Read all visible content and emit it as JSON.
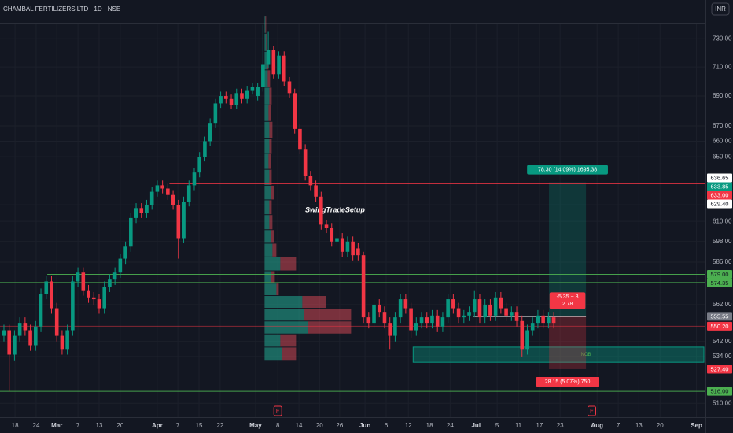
{
  "chart_data": {
    "type": "candlestick",
    "title": "CHAMBAL FERTILIZERS LTD · 1D · NSE",
    "currency": "INR",
    "log_scale": true,
    "grid": true,
    "up_color": "#089981",
    "down_color": "#f23645",
    "xlim": [
      -0.74,
      132.4
    ],
    "ylim": [
      505,
      741
    ],
    "xticks": [
      {
        "value": 2.1,
        "label": "18"
      },
      {
        "value": 6.1,
        "label": "24"
      },
      {
        "value": 10,
        "label": "Mar"
      },
      {
        "value": 14,
        "label": "7"
      },
      {
        "value": 18,
        "label": "13"
      },
      {
        "value": 22,
        "label": "20"
      },
      {
        "value": 29,
        "label": "Apr"
      },
      {
        "value": 32.9,
        "label": "7"
      },
      {
        "value": 36.9,
        "label": "15"
      },
      {
        "value": 40.9,
        "label": "22"
      },
      {
        "value": 47.6,
        "label": "May"
      },
      {
        "value": 51.8,
        "label": "8"
      },
      {
        "value": 55.8,
        "label": "14"
      },
      {
        "value": 59.7,
        "label": "20"
      },
      {
        "value": 63.5,
        "label": "26"
      },
      {
        "value": 68.3,
        "label": "Jun"
      },
      {
        "value": 72.3,
        "label": "6"
      },
      {
        "value": 76.5,
        "label": "12"
      },
      {
        "value": 80.5,
        "label": "18"
      },
      {
        "value": 84.4,
        "label": "24"
      },
      {
        "value": 89.3,
        "label": "Jul"
      },
      {
        "value": 93.3,
        "label": "5"
      },
      {
        "value": 97.3,
        "label": "11"
      },
      {
        "value": 101.3,
        "label": "17"
      },
      {
        "value": 105.2,
        "label": "23"
      },
      {
        "value": 112.2,
        "label": "Aug"
      },
      {
        "value": 116.2,
        "label": "7"
      },
      {
        "value": 120.1,
        "label": "13"
      },
      {
        "value": 124.1,
        "label": "20"
      },
      {
        "value": 131,
        "label": "Sep"
      }
    ],
    "yticks": [
      {
        "value": 510,
        "label": "510.00"
      },
      {
        "value": 534,
        "label": "534.00"
      },
      {
        "value": 542,
        "label": "542.00"
      },
      {
        "value": 562,
        "label": "562.00"
      },
      {
        "value": 586,
        "label": "586.00"
      },
      {
        "value": 598,
        "label": "598.00"
      },
      {
        "value": 610,
        "label": "610.00"
      },
      {
        "value": 620,
        "label": "620.00"
      },
      {
        "value": 650,
        "label": "650.00"
      },
      {
        "value": 660,
        "label": "660.00"
      },
      {
        "value": 670,
        "label": "670.00"
      },
      {
        "value": 690,
        "label": "690.00"
      },
      {
        "value": 710,
        "label": "710.00"
      },
      {
        "value": 730,
        "label": "730.00"
      }
    ],
    "open": [
      545,
      548,
      535,
      545,
      552,
      548,
      540,
      550,
      568,
      575,
      560,
      545,
      538,
      548,
      575,
      580,
      570,
      566,
      565,
      560,
      572,
      576,
      580,
      588,
      595,
      612,
      618,
      615,
      620,
      628,
      632,
      630,
      626,
      620,
      600,
      622,
      632,
      640,
      650,
      660,
      672,
      685,
      690,
      688,
      684,
      692,
      688,
      694,
      690,
      696,
      712,
      722,
      705,
      718,
      700,
      692,
      668,
      655,
      638,
      632,
      625,
      608,
      606,
      598,
      600,
      592,
      598,
      594,
      590,
      555,
      552,
      562,
      558,
      552,
      545,
      555,
      565,
      560,
      548,
      552,
      555,
      552,
      556,
      550,
      555,
      565,
      560,
      555,
      556,
      558,
      565,
      555,
      562,
      556,
      566,
      560,
      556,
      558,
      553,
      538,
      548,
      552,
      556,
      552,
      555
    ],
    "high": [
      551,
      551,
      548,
      555,
      555,
      551,
      553,
      571,
      578,
      578,
      563,
      548,
      551,
      578,
      583,
      583,
      573,
      569,
      568,
      575,
      579,
      583,
      591,
      598,
      615,
      621,
      621,
      623,
      631,
      635,
      635,
      633,
      629,
      623,
      625,
      635,
      643,
      653,
      663,
      675,
      688,
      693,
      693,
      691,
      695,
      695,
      697,
      699,
      699,
      740,
      735,
      725,
      721,
      721,
      703,
      695,
      671,
      658,
      641,
      635,
      628,
      611,
      609,
      603,
      603,
      601,
      601,
      597,
      592,
      558,
      565,
      565,
      561,
      555,
      558,
      568,
      568,
      563,
      555,
      558,
      558,
      559,
      559,
      558,
      568,
      568,
      563,
      559,
      561,
      570,
      568,
      565,
      565,
      569,
      569,
      563,
      561,
      561,
      556,
      551,
      555,
      559,
      559,
      558,
      558
    ],
    "low": [
      542,
      516,
      532,
      542,
      545,
      537,
      537,
      547,
      565,
      557,
      542,
      535,
      535,
      545,
      572,
      567,
      563,
      562,
      557,
      557,
      569,
      573,
      577,
      585,
      592,
      609,
      612,
      612,
      617,
      625,
      627,
      623,
      617,
      588,
      597,
      619,
      629,
      637,
      647,
      657,
      669,
      682,
      685,
      681,
      681,
      685,
      685,
      691,
      687,
      693,
      709,
      702,
      702,
      697,
      689,
      665,
      652,
      635,
      629,
      622,
      605,
      603,
      595,
      595,
      589,
      589,
      587,
      587,
      552,
      549,
      549,
      555,
      549,
      538,
      542,
      552,
      557,
      544,
      545,
      549,
      549,
      549,
      547,
      547,
      552,
      557,
      552,
      552,
      553,
      555,
      552,
      552,
      553,
      553,
      557,
      553,
      553,
      550,
      534,
      535,
      545,
      549,
      549,
      549,
      549
    ],
    "close": [
      548,
      535,
      545,
      552,
      548,
      540,
      550,
      568,
      575,
      560,
      545,
      538,
      548,
      575,
      580,
      570,
      566,
      565,
      560,
      572,
      576,
      580,
      588,
      595,
      612,
      618,
      615,
      620,
      628,
      632,
      630,
      626,
      620,
      600,
      622,
      632,
      640,
      650,
      660,
      672,
      685,
      690,
      688,
      684,
      692,
      688,
      694,
      696,
      696,
      712,
      722,
      705,
      718,
      700,
      692,
      668,
      655,
      638,
      632,
      625,
      608,
      606,
      598,
      600,
      592,
      598,
      590,
      590,
      555,
      552,
      562,
      558,
      552,
      545,
      555,
      565,
      560,
      548,
      552,
      555,
      552,
      556,
      550,
      555,
      565,
      560,
      555,
      556,
      558,
      565,
      555,
      562,
      556,
      566,
      560,
      556,
      558,
      553,
      538,
      548,
      552,
      556,
      552,
      555,
      552
    ],
    "volume_profile": {
      "start": 49.3,
      "up_color": "#22ab94",
      "down_color": "#f7525f",
      "bins": [
        532,
        539,
        546,
        553,
        560,
        567,
        574,
        581,
        589,
        597,
        605,
        614,
        623,
        632,
        642,
        652,
        662,
        673,
        684,
        696,
        708,
        721,
        734,
        747
      ],
      "up": [
        22,
        20,
        55,
        50,
        48,
        15,
        8,
        20,
        10,
        8,
        6,
        6,
        8,
        6,
        5,
        6,
        6,
        5,
        6,
        4,
        3,
        2,
        1
      ],
      "down": [
        18,
        20,
        55,
        60,
        30,
        3,
        5,
        20,
        5,
        4,
        4,
        3,
        4,
        3,
        3,
        3,
        4,
        3,
        3,
        3,
        2,
        1,
        1
      ]
    },
    "levels": [
      {
        "value": 636.65,
        "label": "636.65",
        "color": "#ffffff",
        "text_color": "#131722"
      },
      {
        "value": 633,
        "label": "633.00",
        "color": "#f23645",
        "text_color": "#ffffff",
        "line": true,
        "from": 31.3
      },
      {
        "value": 629.4,
        "label": "629.40",
        "color": "#ffffff",
        "text_color": "#131722"
      },
      {
        "value": 579,
        "label": "579.00",
        "color": "#4caf50",
        "text_color": "#131722",
        "line": true,
        "from": 8.2
      },
      {
        "value": 574.35,
        "label": "574.35",
        "color": "#4caf50",
        "text_color": "#131722",
        "line": true,
        "from": -0.74
      },
      {
        "value": 550.2,
        "label": "550.20",
        "color": "#f23645",
        "text_color": "#ffffff",
        "line": true,
        "from": -0.74
      },
      {
        "value": 516,
        "label": "516.00",
        "color": "#4caf50",
        "text_color": "#131722",
        "line": true,
        "from": -0.74
      }
    ],
    "position": {
      "start": 103.1,
      "end": 110.1,
      "target": 633.85,
      "entry": 555.55,
      "stop": {
        "value": 527.4,
        "label": "527.40"
      },
      "target_text": "78.30 (14.09%) 1695.38",
      "stop_text": "28.15 (5.07%) 750",
      "risk_text": "-5.35 − 8",
      "ratio_text": "2.78"
    },
    "zone": {
      "from": 77.4,
      "top": 539,
      "bottom": 531,
      "label": "NOB"
    },
    "events": [
      {
        "x": 51.8,
        "label": "E"
      },
      {
        "x": 111.2,
        "label": "E"
      }
    ],
    "annotation": "SwingTradeSetup"
  }
}
